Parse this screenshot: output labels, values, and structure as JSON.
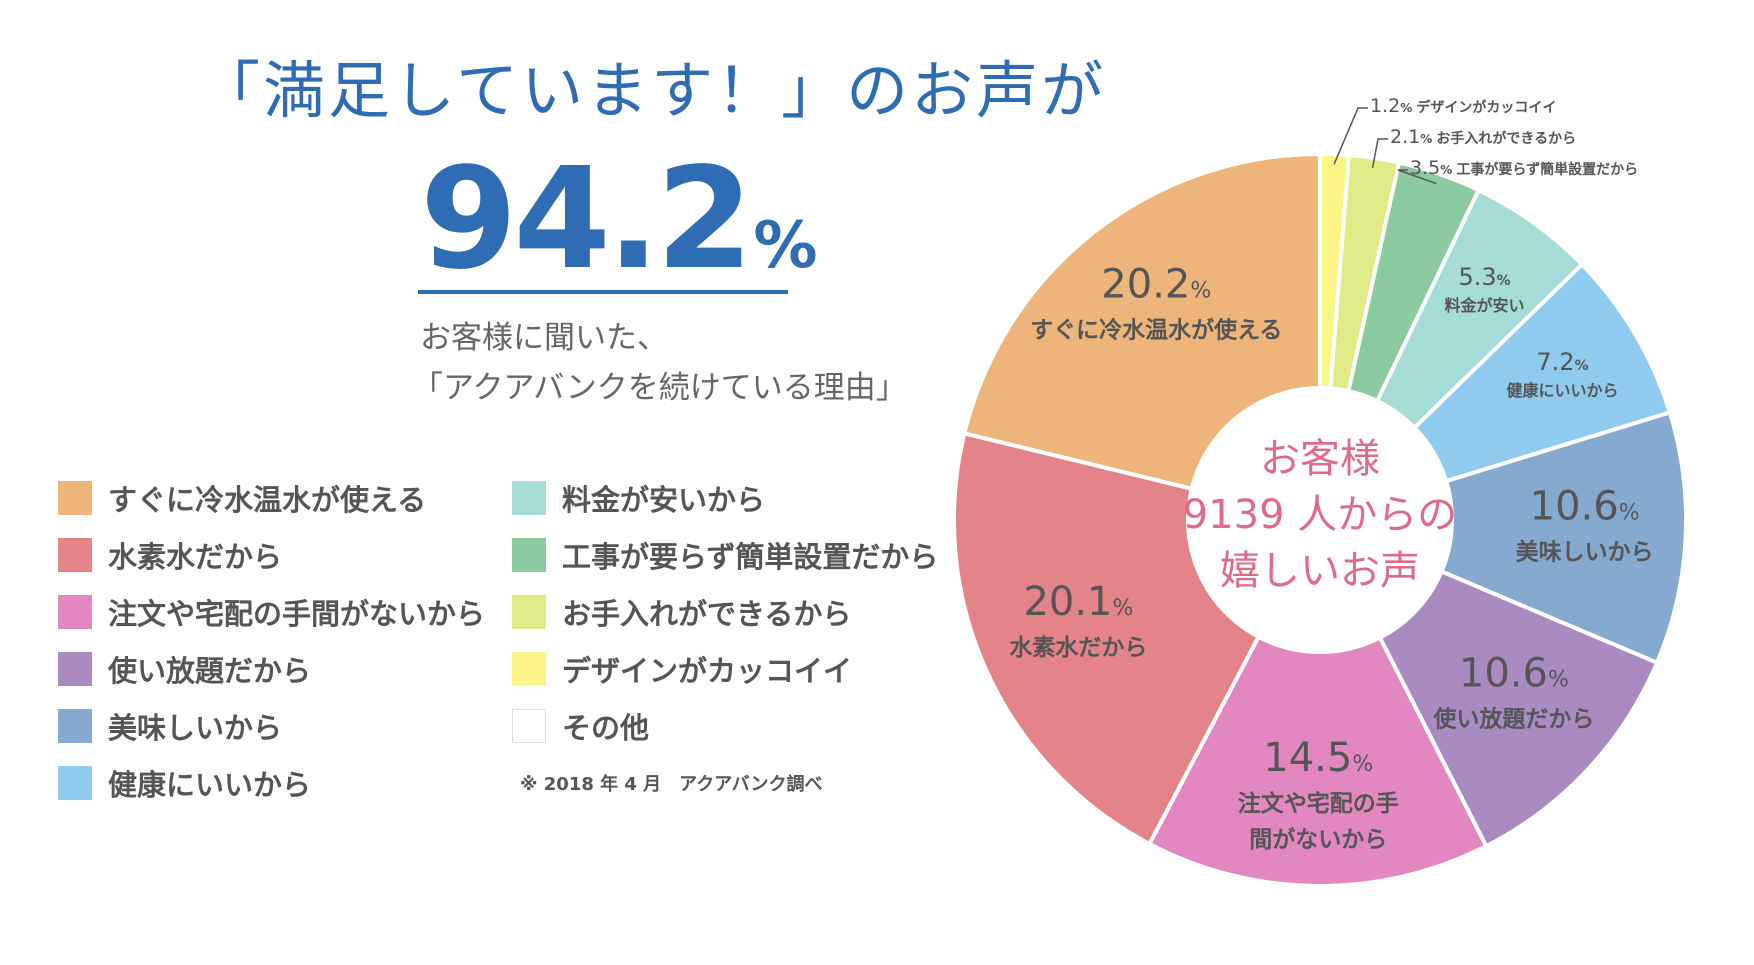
{
  "headline": "「満足しています！」のお声が",
  "big_stat": {
    "number": "94.2",
    "unit": "%"
  },
  "subtitle": {
    "line1": "お客様に聞いた、",
    "line2": "「アクアバンクを続けている理由」"
  },
  "survey_note": "※ 2018 年 4 月　アクアバンク調べ",
  "colors": {
    "instant": "#eeb57a",
    "hydrogen": "#e48488",
    "no_hassle": "#e287bf",
    "unlimited": "#a98bc1",
    "tasty": "#86a9cf",
    "healthy": "#8fcbee",
    "cheap": "#a6dcd6",
    "easy_install": "#8ccaa0",
    "maintenance": "#e0ea86",
    "design": "#fbf486",
    "other": "#ffffff",
    "accent": "#2e6db4",
    "center_text": "#e06a8a"
  },
  "chart_data": {
    "type": "pie",
    "donut": true,
    "center_text": [
      "お客様",
      "9139 人からの",
      "嬉しいお声"
    ],
    "legend_placement": "left",
    "unit": "%",
    "slices": [
      {
        "label": "デザインがカッコイイ",
        "value": 1.2,
        "color_key": "design",
        "pct_text": "1.2",
        "name_text": "デザインがカッコイイ"
      },
      {
        "label": "お手入れができるから",
        "value": 2.1,
        "color_key": "maintenance",
        "pct_text": "2.1",
        "name_text": "お手入れができるから"
      },
      {
        "label": "工事が要らず簡単設置だから",
        "value": 3.5,
        "color_key": "easy_install",
        "pct_text": "3.5",
        "name_text": "工事が要らず簡単設置だから"
      },
      {
        "label": "料金が安いから",
        "value": 5.3,
        "color_key": "cheap",
        "pct_text": "5.3",
        "name_text": "料金が安い"
      },
      {
        "label": "健康にいいから",
        "value": 7.2,
        "color_key": "healthy",
        "pct_text": "7.2",
        "name_text": "健康にいいから"
      },
      {
        "label": "美味しいから",
        "value": 10.6,
        "color_key": "tasty",
        "pct_text": "10.6",
        "name_text": "美味しいから"
      },
      {
        "label": "使い放題だから",
        "value": 10.6,
        "color_key": "unlimited",
        "pct_text": "10.6",
        "name_text": "使い放題だから"
      },
      {
        "label": "注文や宅配の手間がないから",
        "value": 14.5,
        "color_key": "no_hassle",
        "pct_text": "14.5",
        "name_text": "注文や宅配の手間がないから"
      },
      {
        "label": "水素水だから",
        "value": 20.1,
        "color_key": "hydrogen",
        "pct_text": "20.1",
        "name_text": "水素水だから"
      },
      {
        "label": "すぐに冷水温水が使える",
        "value": 20.2,
        "color_key": "instant",
        "pct_text": "20.2",
        "name_text": "すぐに冷水温水が使える"
      }
    ],
    "legend": [
      {
        "label": "すぐに冷水温水が使える",
        "color_key": "instant"
      },
      {
        "label": "水素水だから",
        "color_key": "hydrogen"
      },
      {
        "label": "注文や宅配の手間がないから",
        "color_key": "no_hassle"
      },
      {
        "label": "使い放題だから",
        "color_key": "unlimited"
      },
      {
        "label": "美味しいから",
        "color_key": "tasty"
      },
      {
        "label": "健康にいいから",
        "color_key": "healthy"
      },
      {
        "label": "料金が安いから",
        "color_key": "cheap"
      },
      {
        "label": "工事が要らず簡単設置だから",
        "color_key": "easy_install"
      },
      {
        "label": "お手入れができるから",
        "color_key": "maintenance"
      },
      {
        "label": "デザインがカッコイイ",
        "color_key": "design"
      },
      {
        "label": "その他",
        "color_key": "other"
      }
    ]
  }
}
